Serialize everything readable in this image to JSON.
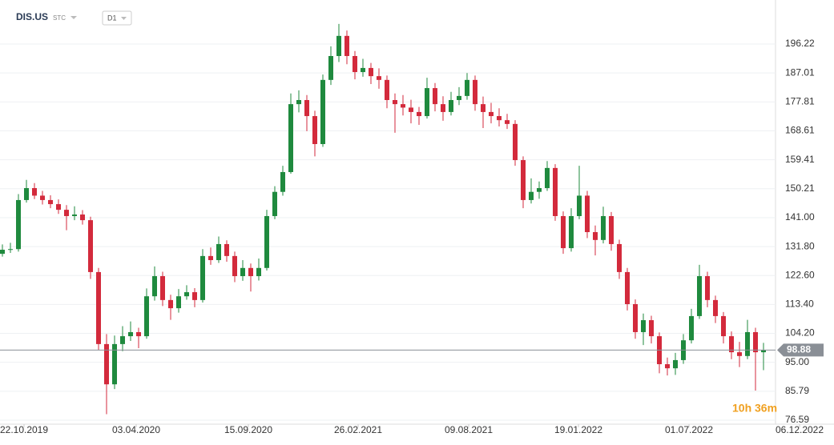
{
  "header": {
    "symbol": "DIS.US",
    "market": "STC",
    "interval": "D1"
  },
  "countdown": "10h 36m",
  "chart_data": {
    "type": "candlestick",
    "up_color": "#1f8a3e",
    "down_color": "#d32a3c",
    "grid": true,
    "last_price": 98.88,
    "ylim": [
      75.32,
      207.67
    ],
    "yticks": [
      {
        "value": 196.22,
        "label": "196.22"
      },
      {
        "value": 187.01,
        "label": "187.01"
      },
      {
        "value": 177.81,
        "label": "177.81"
      },
      {
        "value": 168.61,
        "label": "168.61"
      },
      {
        "value": 159.41,
        "label": "159.41"
      },
      {
        "value": 150.21,
        "label": "150.21"
      },
      {
        "value": 141,
        "label": "141.00"
      },
      {
        "value": 131.8,
        "label": "131.80"
      },
      {
        "value": 122.6,
        "label": "122.60"
      },
      {
        "value": 113.4,
        "label": "113.40"
      },
      {
        "value": 104.2,
        "label": "104.20"
      },
      {
        "value": 95,
        "label": "95.00"
      },
      {
        "value": 85.79,
        "label": "85.79"
      },
      {
        "value": 76.59,
        "label": "76.59"
      }
    ],
    "xlim": [
      -0.3,
      96.5
    ],
    "xticks": [
      {
        "value": 2.7,
        "label": "22.10.2019"
      },
      {
        "value": 16.7,
        "label": "03.04.2020"
      },
      {
        "value": 30.7,
        "label": "15.09.2020"
      },
      {
        "value": 44.4,
        "label": "26.02.2021"
      },
      {
        "value": 58.2,
        "label": "09.08.2021"
      },
      {
        "value": 71.9,
        "label": "19.01.2022"
      },
      {
        "value": 85.7,
        "label": "01.07.2022"
      },
      {
        "value": 99.5,
        "label": "06.12.2022"
      }
    ],
    "open": [
      129.5,
      130.8,
      131.0,
      146.6,
      150.4,
      148.0,
      146.6,
      145.3,
      143.5,
      141.5,
      142.0,
      140.2,
      123.7,
      100.8,
      88.0,
      100.8,
      103.3,
      104.6,
      103.3,
      116.0,
      122.4,
      114.8,
      112.2,
      116.0,
      117.3,
      114.8,
      128.8,
      127.5,
      132.6,
      128.8,
      122.4,
      125.0,
      122.4,
      125.0,
      141.5,
      149.2,
      155.5,
      177.1,
      178.4,
      173.3,
      164.4,
      184.8,
      192.4,
      198.8,
      192.4,
      187.3,
      188.6,
      186.0,
      184.8,
      178.4,
      177.1,
      176.0,
      174.6,
      173.3,
      182.2,
      177.1,
      174.6,
      178.4,
      179.7,
      184.8,
      177.1,
      174.6,
      173.3,
      172.0,
      170.8,
      159.3,
      146.6,
      149.2,
      150.4,
      156.8,
      141.5,
      131.3,
      141.5,
      148.0,
      136.4,
      133.9,
      141.5,
      132.6,
      123.7,
      113.5,
      104.6,
      108.4,
      103.3,
      94.4,
      93.1,
      95.7,
      102.0,
      109.7,
      122.4,
      114.8,
      109.7,
      103.3,
      98.2,
      97.0,
      104.6,
      98.2
    ],
    "high": [
      132.5,
      133.0,
      148.5,
      153.0,
      152.0,
      149.5,
      148.1,
      146.8,
      145.0,
      144.6,
      143.4,
      141.3,
      125.0,
      104.0,
      103.5,
      106.5,
      108.0,
      106.0,
      118.5,
      125.5,
      123.8,
      116.5,
      118.3,
      119.5,
      118.6,
      131.0,
      131.5,
      135.0,
      133.8,
      130.2,
      127.5,
      126.4,
      128.0,
      143.5,
      151.0,
      157.5,
      180.5,
      181.5,
      180.0,
      175.0,
      186.5,
      195.5,
      202.6,
      200.5,
      194.0,
      191.5,
      190.2,
      188.5,
      186.2,
      180.5,
      180.0,
      178.5,
      176.2,
      185.5,
      183.8,
      179.6,
      181.0,
      182.5,
      187.0,
      186.2,
      179.5,
      177.5,
      175.8,
      174.0,
      172.0,
      160.5,
      153.5,
      152.5,
      159.0,
      158.0,
      143.0,
      144.0,
      157.5,
      149.5,
      138.5,
      144.5,
      142.8,
      134.0,
      125.0,
      115.0,
      110.5,
      109.8,
      104.5,
      96.5,
      98.0,
      104.0,
      112.0,
      126.0,
      123.8,
      116.2,
      111.0,
      104.8,
      101.5,
      108.5,
      106.0,
      101.2
    ],
    "low": [
      128.6,
      129.8,
      130.2,
      145.8,
      146.9,
      145.2,
      144.0,
      142.2,
      137.0,
      140.2,
      138.8,
      121.5,
      99.0,
      78.5,
      86.5,
      98.5,
      101.8,
      99.5,
      102.5,
      114.6,
      112.9,
      108.5,
      110.8,
      114.9,
      112.5,
      114.0,
      126.0,
      126.6,
      127.0,
      120.5,
      120.9,
      117.5,
      121.0,
      124.2,
      140.5,
      148.0,
      155.0,
      174.5,
      168.5,
      160.5,
      163.5,
      183.2,
      190.5,
      189.8,
      185.0,
      185.8,
      183.5,
      182.0,
      175.8,
      168.0,
      173.5,
      171.0,
      170.5,
      172.5,
      174.8,
      171.8,
      173.5,
      176.8,
      178.5,
      175.0,
      169.5,
      171.0,
      170.0,
      169.2,
      157.5,
      144.0,
      145.5,
      147.0,
      149.5,
      140.0,
      129.5,
      130.2,
      140.5,
      134.5,
      129.0,
      132.8,
      130.5,
      121.5,
      111.5,
      102.5,
      100.5,
      101.0,
      91.5,
      90.8,
      91.0,
      94.5,
      101.0,
      108.8,
      112.5,
      107.5,
      101.0,
      96.0,
      93.5,
      96.0,
      86.0,
      92.5
    ],
    "close": [
      130.8,
      131.0,
      146.6,
      150.4,
      148.0,
      146.6,
      145.3,
      143.5,
      141.5,
      142.0,
      140.2,
      123.7,
      100.8,
      88.0,
      100.8,
      103.3,
      104.6,
      103.3,
      116.0,
      122.4,
      114.8,
      112.2,
      116.0,
      117.3,
      114.8,
      128.8,
      127.5,
      132.6,
      128.8,
      122.4,
      125.0,
      122.4,
      125.0,
      141.5,
      149.2,
      155.5,
      177.1,
      178.4,
      173.3,
      164.4,
      184.8,
      192.4,
      198.8,
      192.4,
      187.3,
      188.6,
      186.0,
      184.8,
      178.4,
      177.1,
      176.0,
      174.6,
      173.3,
      182.2,
      177.1,
      174.6,
      178.4,
      179.7,
      184.8,
      177.1,
      174.6,
      173.3,
      172.0,
      170.8,
      159.3,
      146.6,
      149.2,
      150.4,
      156.8,
      141.5,
      131.3,
      141.5,
      148.0,
      136.4,
      133.9,
      141.5,
      132.6,
      123.7,
      113.5,
      104.6,
      108.4,
      103.3,
      94.4,
      93.1,
      95.7,
      102.0,
      109.7,
      122.4,
      114.8,
      109.7,
      103.3,
      98.2,
      97.0,
      104.6,
      98.2,
      98.88
    ]
  }
}
